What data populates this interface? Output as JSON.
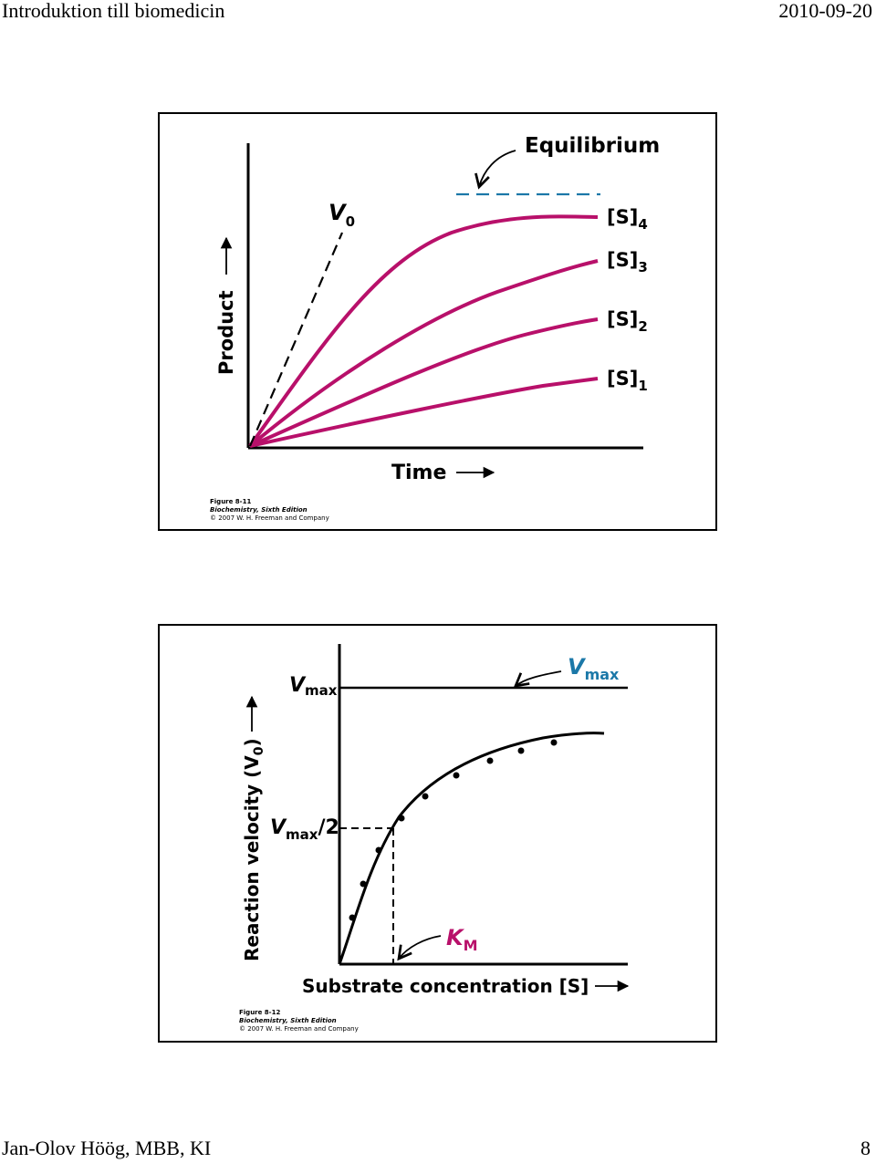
{
  "header": {
    "title": "Introduktion till biomedicin",
    "date": "2010-09-20"
  },
  "footer": {
    "author": "Jan-Olov Höög, MBB, KI",
    "page_number": "8"
  },
  "figures": [
    {
      "labels": {
        "equilibrium": "Equilibrium",
        "v0": "V",
        "v0_sub": "0",
        "y_axis": "Product",
        "x_axis": "Time",
        "curves": [
          {
            "base": "[S]",
            "sub": "4"
          },
          {
            "base": "[S]",
            "sub": "3"
          },
          {
            "base": "[S]",
            "sub": "2"
          },
          {
            "base": "[S]",
            "sub": "1"
          }
        ]
      },
      "credit": {
        "figure": "Figure 8-11",
        "book": "Biochemistry, Sixth Edition",
        "copyright": "© 2007 W. H. Freeman and Company"
      }
    },
    {
      "labels": {
        "vmax_callout": "V",
        "vmax_callout_sub": "max",
        "vmax_axis": "V",
        "vmax_axis_sub": "max",
        "half_vmax": "V",
        "half_vmax_sub": "max",
        "half_vmax_suffix": "/2",
        "km": "K",
        "km_sub": "M",
        "y_axis": "Reaction velocity (V",
        "y_axis_sub": "0",
        "y_axis_suffix": ")",
        "x_axis": "Substrate concentration [S]"
      },
      "credit": {
        "figure": "Figure 8-12",
        "book": "Biochemistry, Sixth Edition",
        "copyright": "© 2007 W. H. Freeman and Company"
      }
    }
  ],
  "colors": {
    "curve": "#b8106a",
    "equilibrium_line": "#1b78a8",
    "vmax_callout": "#1b78a8",
    "km": "#b8106a"
  }
}
